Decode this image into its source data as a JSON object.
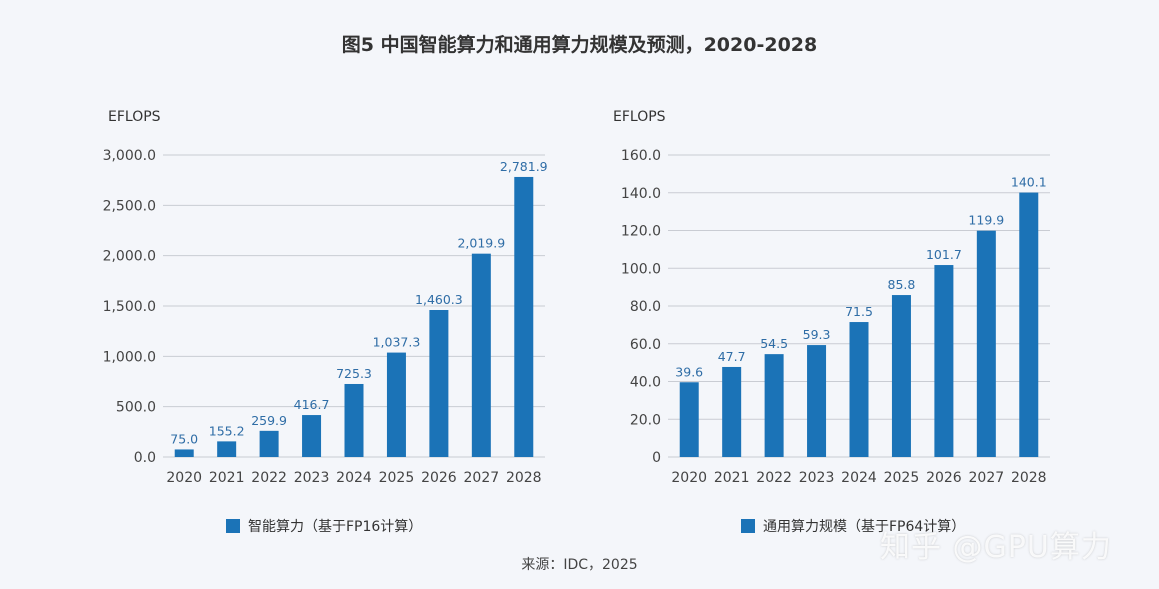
{
  "title": "图5 中国智能算力和通用算力规模及预测，2020-2028",
  "source": "来源：IDC，2025",
  "watermark": "知乎 @GPU算力",
  "colors": {
    "bar": "#1b73b7",
    "label": "#2f6da6",
    "background": "#f4f6fa"
  },
  "chart_data": [
    {
      "type": "bar",
      "ylabel": "EFLOPS",
      "categories": [
        "2020",
        "2021",
        "2022",
        "2023",
        "2024",
        "2025",
        "2026",
        "2027",
        "2028"
      ],
      "values": [
        75.0,
        155.2,
        259.9,
        416.7,
        725.3,
        1037.3,
        1460.3,
        2019.9,
        2781.9
      ],
      "value_labels": [
        "75.0",
        "155.2",
        "259.9",
        "416.7",
        "725.3",
        "1,037.3",
        "1,460.3",
        "2,019.9",
        "2,781.9"
      ],
      "yticks": [
        "0.0",
        "500.0",
        "1,000.0",
        "1,500.0",
        "2,000.0",
        "2,500.0",
        "3,000.0"
      ],
      "ylim": [
        0,
        3000
      ],
      "series_name": "智能算力（基于FP16计算）",
      "grid": true,
      "legend": "bottom"
    },
    {
      "type": "bar",
      "ylabel": "EFLOPS",
      "categories": [
        "2020",
        "2021",
        "2022",
        "2023",
        "2024",
        "2025",
        "2026",
        "2027",
        "2028"
      ],
      "values": [
        39.6,
        47.7,
        54.5,
        59.3,
        71.5,
        85.8,
        101.7,
        119.9,
        140.1
      ],
      "value_labels": [
        "39.6",
        "47.7",
        "54.5",
        "59.3",
        "71.5",
        "85.8",
        "101.7",
        "119.9",
        "140.1"
      ],
      "yticks": [
        "0",
        "20.0",
        "40.0",
        "60.0",
        "80.0",
        "100.0",
        "120.0",
        "140.0",
        "160.0"
      ],
      "ylim": [
        0,
        160
      ],
      "series_name": "通用算力规模（基于FP64计算）",
      "grid": true,
      "legend": "bottom"
    }
  ]
}
